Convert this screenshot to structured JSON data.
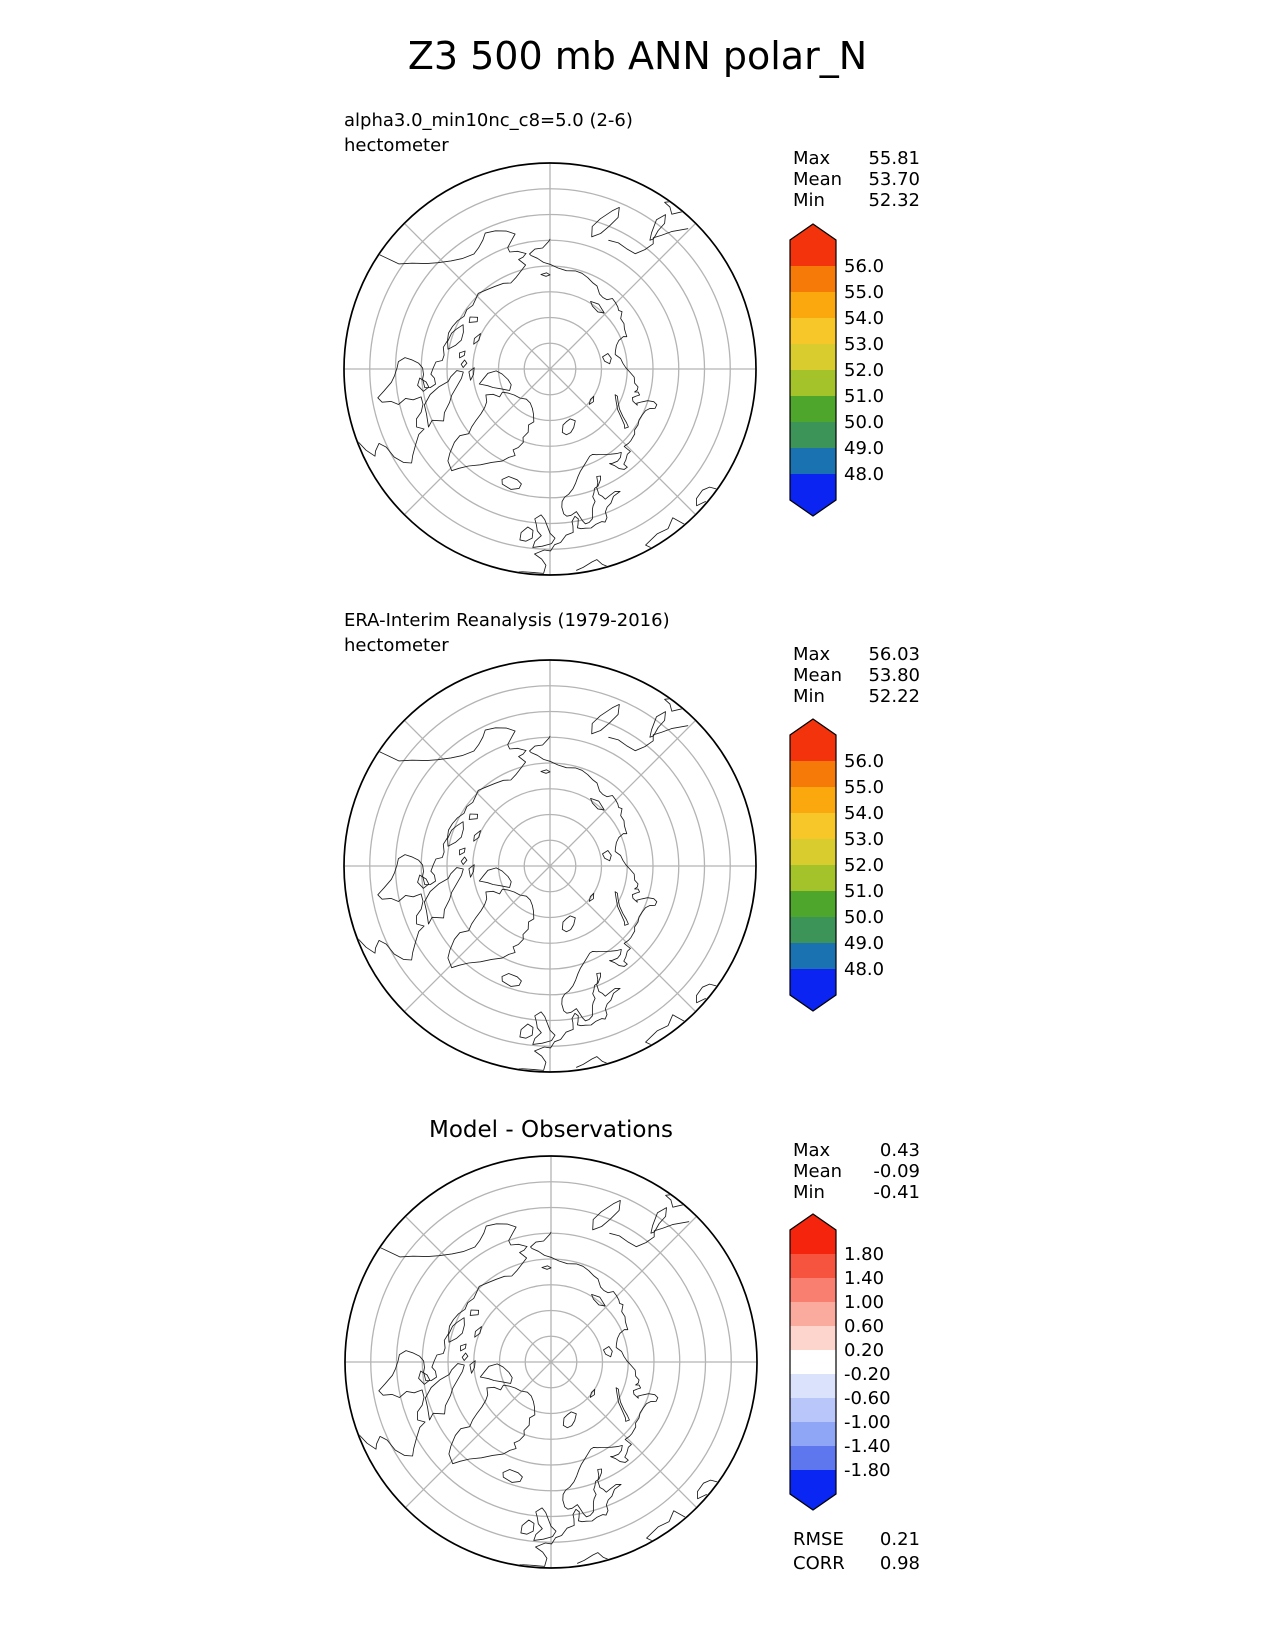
{
  "title": "Z3 500 mb ANN polar_N",
  "stat_labels": [
    "Max",
    "Mean",
    "Min"
  ],
  "panels": [
    {
      "id": "model",
      "subtitle": "alpha3.0_min10nc_c8=5.0 (2-6)",
      "units": "hectometer",
      "stats": {
        "max": "55.81",
        "mean": "53.70",
        "min": "52.32"
      },
      "colorbar": {
        "labels": [
          "56.0",
          "55.0",
          "54.0",
          "53.0",
          "52.0",
          "51.0",
          "50.0",
          "49.0",
          "48.0"
        ],
        "colors": [
          "#f2330b",
          "#f67a08",
          "#faa80d",
          "#f7c72a",
          "#d9cc2e",
          "#a4c32a",
          "#4fa62c",
          "#3d9459",
          "#1a72b1",
          "#0b24f2"
        ]
      }
    },
    {
      "id": "observations",
      "subtitle": "ERA-Interim Reanalysis (1979-2016)",
      "units": "hectometer",
      "stats": {
        "max": "56.03",
        "mean": "53.80",
        "min": "52.22"
      },
      "colorbar": {
        "labels": [
          "56.0",
          "55.0",
          "54.0",
          "53.0",
          "52.0",
          "51.0",
          "50.0",
          "49.0",
          "48.0"
        ],
        "colors": [
          "#f2330b",
          "#f67a08",
          "#faa80d",
          "#f7c72a",
          "#d9cc2e",
          "#a4c32a",
          "#4fa62c",
          "#3d9459",
          "#1a72b1",
          "#0b24f2"
        ]
      }
    },
    {
      "id": "difference",
      "title": "Model - Observations",
      "stats": {
        "max": "0.43",
        "mean": "-0.09",
        "min": "-0.41"
      },
      "colorbar": {
        "labels": [
          "1.80",
          "1.40",
          "1.00",
          "0.60",
          "0.20",
          "-0.20",
          "-0.60",
          "-1.00",
          "-1.40",
          "-1.80"
        ],
        "colors": [
          "#f5240d",
          "#f75440",
          "#f98071",
          "#fbab9d",
          "#fdd5cc",
          "#ffffff",
          "#dbe2fb",
          "#b8c6f9",
          "#8fa5f5",
          "#5e76ee",
          "#0a26f3"
        ]
      },
      "metrics": [
        {
          "label": "RMSE",
          "value": "0.21"
        },
        {
          "label": "CORR",
          "value": "0.98"
        }
      ]
    }
  ],
  "chart_data": {
    "type": "polar_map",
    "title": "Z3 500 mb ANN polar_N",
    "variable": "Z3 500 mb",
    "season": "ANN",
    "region": "polar_N",
    "projection": "north polar azimuthal, latitude gridlines every 10 deg, longitude spokes every 45 deg",
    "panels": [
      {
        "name": "alpha3.0_min10nc_c8=5.0 (2-6)",
        "units": "hectometer",
        "stats": {
          "max": 55.81,
          "mean": 53.7,
          "min": 52.32
        },
        "contour_levels": [
          56.0,
          55.0,
          54.0,
          53.0,
          52.0,
          51.0,
          50.0,
          49.0,
          48.0
        ],
        "colorbar_colors": [
          "#f2330b",
          "#f67a08",
          "#faa80d",
          "#f7c72a",
          "#d9cc2e",
          "#a4c32a",
          "#4fa62c",
          "#3d9459",
          "#1a72b1",
          "#0b24f2"
        ]
      },
      {
        "name": "ERA-Interim Reanalysis (1979-2016)",
        "units": "hectometer",
        "stats": {
          "max": 56.03,
          "mean": 53.8,
          "min": 52.22
        },
        "contour_levels": [
          56.0,
          55.0,
          54.0,
          53.0,
          52.0,
          51.0,
          50.0,
          49.0,
          48.0
        ],
        "colorbar_colors": [
          "#f2330b",
          "#f67a08",
          "#faa80d",
          "#f7c72a",
          "#d9cc2e",
          "#a4c32a",
          "#4fa62c",
          "#3d9459",
          "#1a72b1",
          "#0b24f2"
        ]
      },
      {
        "name": "Model - Observations",
        "stats": {
          "max": 0.43,
          "mean": -0.09,
          "min": -0.41
        },
        "contour_levels": [
          1.8,
          1.4,
          1.0,
          0.6,
          0.2,
          -0.2,
          -0.6,
          -1.0,
          -1.4,
          -1.8
        ],
        "colorbar_colors": [
          "#f5240d",
          "#f75440",
          "#f98071",
          "#fbab9d",
          "#fdd5cc",
          "#ffffff",
          "#dbe2fb",
          "#b8c6f9",
          "#8fa5f5",
          "#5e76ee",
          "#0a26f3"
        ],
        "rmse": 0.21,
        "corr": 0.98
      }
    ]
  }
}
